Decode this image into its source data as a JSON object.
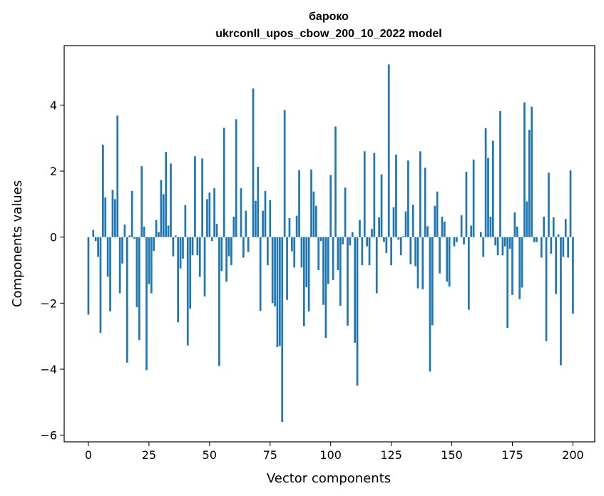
{
  "chart_data": {
    "type": "bar",
    "title": "бароко",
    "subtitle": "ukrconll_upos_cbow_200_10_2022 model",
    "xlabel": "Vector components",
    "ylabel": "Components values",
    "xlim": [
      -10,
      209
    ],
    "ylim": [
      -6.2,
      5.8
    ],
    "xticks": [
      0,
      25,
      50,
      75,
      100,
      125,
      150,
      175,
      200
    ],
    "xtick_labels": [
      "0",
      "25",
      "50",
      "75",
      "100",
      "125",
      "150",
      "175",
      "200"
    ],
    "yticks": [
      -6,
      -4,
      -2,
      0,
      2,
      4
    ],
    "ytick_labels": [
      "−6",
      "−4",
      "−2",
      "0",
      "2",
      "4"
    ],
    "bar_color": "#1f77b4",
    "grid": false,
    "values": [
      -2.35,
      0.0,
      0.22,
      -0.12,
      -0.6,
      -2.9,
      2.8,
      1.2,
      -1.2,
      -2.25,
      1.43,
      1.15,
      3.68,
      -1.7,
      -0.8,
      0.38,
      -3.8,
      0.05,
      1.4,
      -0.05,
      -2.12,
      -3.12,
      2.15,
      0.32,
      -4.03,
      -1.42,
      -1.7,
      -0.42,
      0.52,
      0.15,
      1.73,
      1.3,
      2.58,
      0.35,
      2.23,
      -0.58,
      0.05,
      -2.58,
      -0.95,
      -0.65,
      0.97,
      -3.28,
      -2.17,
      -0.55,
      2.45,
      -0.55,
      -1.2,
      2.38,
      -1.8,
      1.15,
      1.35,
      -0.12,
      1.48,
      0.4,
      -3.9,
      -1.03,
      3.31,
      -1.35,
      -0.58,
      -0.85,
      0.62,
      3.57,
      0.0,
      1.48,
      -0.62,
      0.8,
      -0.45,
      0.0,
      4.5,
      1.1,
      2.13,
      -2.23,
      0.8,
      1.4,
      -0.85,
      1.12,
      -2.0,
      -2.1,
      -3.33,
      -3.3,
      -5.6,
      3.85,
      -1.9,
      0.58,
      -0.43,
      -0.92,
      0.65,
      2.03,
      -0.92,
      -2.7,
      -1.52,
      -2.25,
      2.05,
      1.38,
      0.95,
      -1.0,
      -0.12,
      -2.05,
      -3.05,
      -1.42,
      1.88,
      -1.3,
      3.35,
      -1.0,
      -2.08,
      -0.22,
      1.5,
      -2.68,
      -0.25,
      0.15,
      -3.2,
      -4.5,
      0.52,
      -0.85,
      2.6,
      -0.28,
      -0.85,
      0.25,
      2.55,
      -1.7,
      0.6,
      1.9,
      -0.15,
      -0.48,
      5.23,
      -0.85,
      0.9,
      2.5,
      -0.08,
      -0.55,
      0.03,
      0.78,
      2.32,
      -0.82,
      0.98,
      -0.88,
      -1.55,
      2.6,
      -1.58,
      2.1,
      0.33,
      -4.07,
      -2.67,
      0.95,
      1.38,
      -1.1,
      0.62,
      0.47,
      -1.35,
      -1.5,
      0.0,
      -0.28,
      -0.15,
      0.0,
      0.66,
      -0.22,
      1.98,
      -2.2,
      0.35,
      2.35,
      0.0,
      0.0,
      0.15,
      -0.6,
      3.3,
      2.4,
      0.62,
      2.92,
      -0.25,
      -0.55,
      3.82,
      -0.55,
      -0.28,
      -2.75,
      -0.35,
      -1.75,
      0.75,
      0.32,
      -1.88,
      -1.53,
      4.08,
      1.08,
      3.25,
      3.95,
      -0.15,
      -0.15,
      0.0,
      -0.62,
      0.62,
      -3.15,
      1.95,
      -0.5,
      0.6,
      -1.72,
      0.08,
      -3.88,
      -0.6,
      0.55,
      -0.62,
      2.02,
      -2.32
    ]
  }
}
